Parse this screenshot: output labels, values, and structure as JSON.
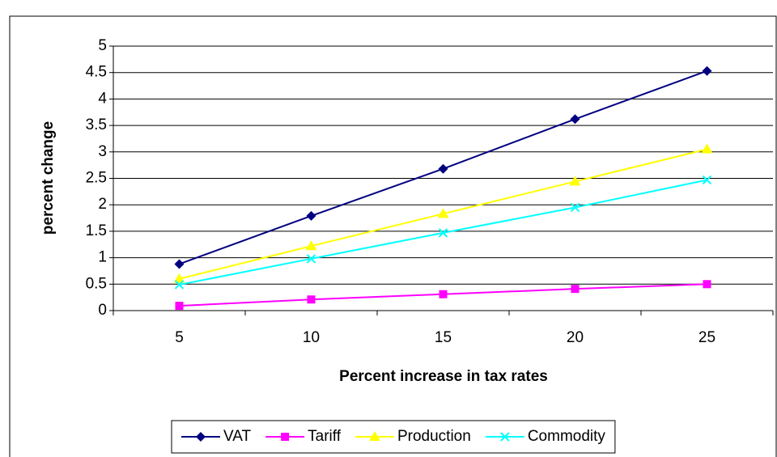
{
  "chart_data": {
    "type": "line",
    "x_label": "Percent increase in tax rates",
    "y_label": "percent change",
    "categories": [
      "5",
      "10",
      "15",
      "20",
      "25"
    ],
    "series": [
      {
        "name": "VAT",
        "color": "#000080",
        "marker": "diamond",
        "values": [
          0.88,
          1.79,
          2.68,
          3.62,
          4.53
        ]
      },
      {
        "name": "Tariff",
        "color": "#ff00ff",
        "marker": "square",
        "values": [
          0.09,
          0.21,
          0.31,
          0.41,
          0.5
        ]
      },
      {
        "name": "Production",
        "color": "#ffff00",
        "marker": "triangle",
        "values": [
          0.6,
          1.22,
          1.83,
          2.44,
          3.05
        ]
      },
      {
        "name": "Commodity",
        "color": "#00ffff",
        "marker": "x",
        "values": [
          0.49,
          0.98,
          1.47,
          1.95,
          2.47
        ]
      }
    ],
    "ylim": [
      0,
      5
    ],
    "yticks": [
      0,
      0.5,
      1,
      1.5,
      2,
      2.5,
      3,
      3.5,
      4,
      4.5,
      5
    ],
    "grid": true,
    "legend": "bottom"
  }
}
